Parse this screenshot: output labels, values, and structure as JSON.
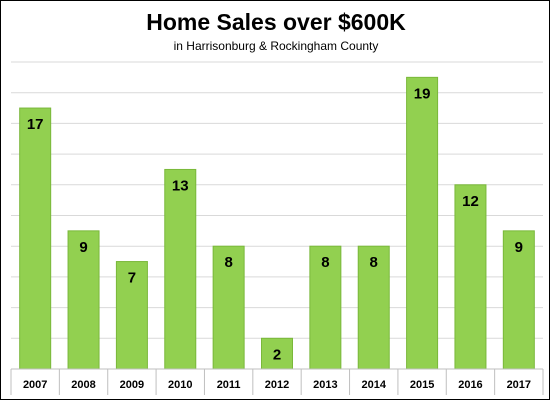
{
  "chart_data": {
    "type": "bar",
    "title": "Home Sales over $600K",
    "subtitle": "in Harrisonburg & Rockingham County",
    "xlabel": "",
    "ylabel": "",
    "categories": [
      "2007",
      "2008",
      "2009",
      "2010",
      "2011",
      "2012",
      "2013",
      "2014",
      "2015",
      "2016",
      "2017"
    ],
    "values": [
      17,
      9,
      7,
      13,
      8,
      2,
      8,
      8,
      19,
      12,
      9
    ],
    "ylim": [
      0,
      20
    ],
    "gridlines": true,
    "data_labels": true,
    "bar_color": "#92d050",
    "bar_edge_color": "#7ab83a",
    "grid_color": "#d9d9d9"
  }
}
